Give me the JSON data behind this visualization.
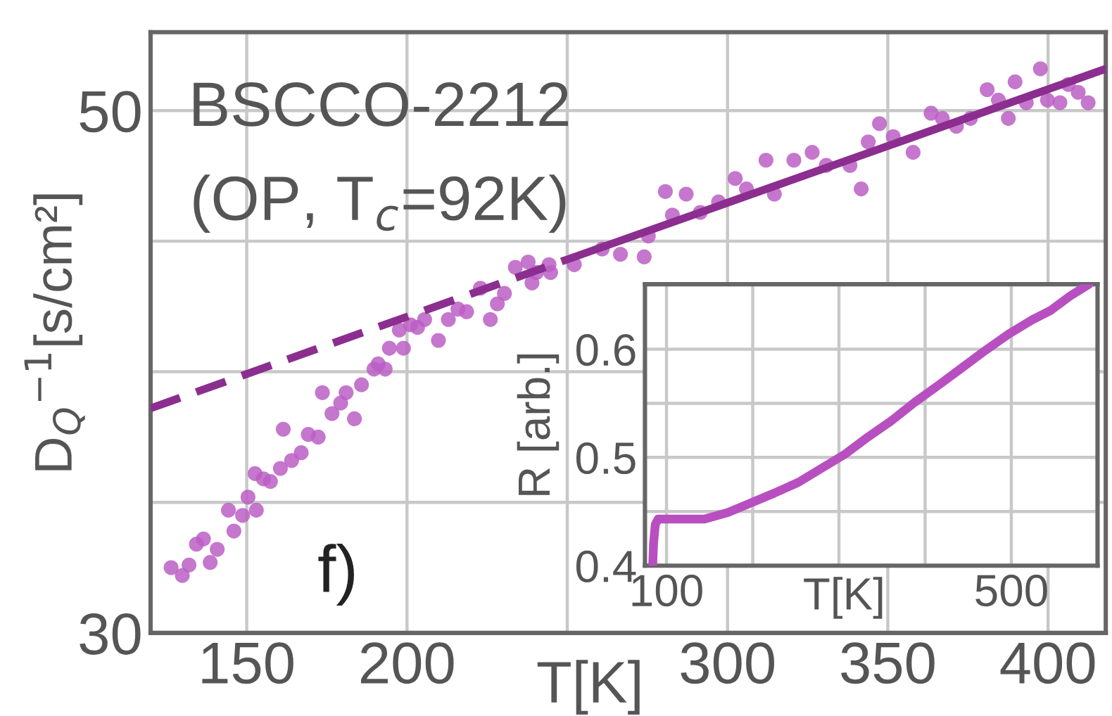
{
  "chart_data": [
    {
      "type": "scatter",
      "xlabel": "T[K]",
      "ylabel": "D$_{Q}$$^{−1}$[s/cm²]",
      "annotations": [
        "BSCCO-2212",
        "(OP, T$_{c}$=92K)",
        "f)"
      ],
      "xlim": [
        120,
        418
      ],
      "ylim": [
        30,
        53
      ],
      "xticks": [
        150,
        200,
        {
          "value": 250,
          "label": null
        },
        300,
        350,
        400
      ],
      "yticks": [
        30,
        {
          "value": 35,
          "label": null
        },
        {
          "value": 40,
          "label": null
        },
        {
          "value": 45,
          "label": null
        },
        50
      ],
      "grid": true,
      "series": [
        {
          "marker": "circle",
          "color": "#bb5ec4",
          "x": [
            126.4,
            129.9,
            132,
            134.3,
            136.5,
            138.6,
            140.8,
            144.3,
            146,
            148.7,
            150.4,
            152.6,
            153,
            155.2,
            157.4,
            160.5,
            161.4,
            164,
            167,
            169.2,
            172.3,
            173.6,
            176.6,
            179.3,
            181,
            183.6,
            185.8,
            189.7,
            191,
            193.2,
            194.5,
            197.6,
            198.9,
            201.1,
            203.3,
            205.5,
            209.8,
            212.9,
            215.9,
            218.6,
            222.9,
            226,
            228.2,
            230.4,
            233.8,
            237.8,
            240.4,
            244.3,
            239,
            244.8,
            252.2,
            260.9,
            266.6,
            274,
            275.3,
            280.6,
            282.8,
            287.1,
            291.5,
            297.2,
            302.4,
            305.9,
            312,
            314.6,
            320.7,
            326.4,
            330.8,
            338.2,
            341.7,
            343.9,
            347.4,
            351.7,
            357.9,
            363.5,
            367,
            371.4,
            375.8,
            381,
            384.5,
            387.6,
            389.7,
            393.2,
            397.6,
            399.8,
            403.7,
            406.3,
            409.4,
            412.5
          ],
          "values": [
            32.5,
            32.2,
            32.6,
            33.4,
            33.6,
            32.7,
            33.2,
            34.7,
            33.9,
            34.5,
            35.2,
            36.1,
            34.7,
            35.9,
            35.8,
            36.3,
            37.8,
            36.6,
            36.9,
            37.6,
            37.5,
            39.2,
            38.4,
            38.8,
            39.2,
            38.2,
            39.5,
            40.1,
            40.3,
            40.1,
            40.9,
            41.6,
            40.9,
            41.8,
            41.7,
            42.0,
            41.2,
            42.0,
            42.4,
            42.3,
            43.2,
            42.0,
            42.6,
            43.0,
            44.0,
            44.2,
            43.8,
            44.1,
            43.4,
            43.8,
            44.1,
            44.7,
            44.5,
            44.4,
            45.2,
            46.9,
            46.0,
            46.8,
            46.1,
            46.5,
            47.4,
            47.0,
            48.1,
            46.8,
            48.1,
            48.4,
            47.9,
            47.9,
            47.0,
            48.8,
            49.5,
            49.0,
            48.4,
            49.9,
            49.7,
            49.4,
            49.7,
            50.8,
            50.4,
            49.7,
            51.1,
            50.3,
            51.6,
            50.4,
            50.3,
            51.0,
            50.7,
            50.3
          ]
        },
        {
          "type": "line",
          "line_style": "dashed",
          "color": "#8b2e8f",
          "x": [
            120,
            250
          ],
          "values": [
            38.6,
            44.3
          ]
        },
        {
          "type": "line",
          "line_style": "solid",
          "color": "#8b2e8f",
          "x": [
            250,
            418
          ],
          "values": [
            44.3,
            51.6
          ]
        }
      ]
    },
    {
      "type": "line",
      "xlabel": "T[K]",
      "ylabel": "R [arb.]",
      "xlim": [
        75,
        600
      ],
      "ylim": [
        0.4,
        0.66
      ],
      "xticks": [
        100,
        {
          "value": 200,
          "label": null
        },
        {
          "value": 300,
          "label": null
        },
        {
          "value": 400,
          "label": null
        },
        500
      ],
      "yticks": [
        0.4,
        {
          "value": 0.45,
          "label": null
        },
        0.5,
        {
          "value": 0.55,
          "label": null
        },
        0.6
      ],
      "grid": true,
      "series": [
        {
          "line_style": "solid",
          "color": "#b84fc0",
          "x": [
            84,
            85,
            87,
            90.2,
            117,
            144,
            171,
            198,
            225,
            253,
            280,
            307,
            334,
            361,
            388,
            416,
            443,
            470,
            497,
            524,
            546,
            568,
            590
          ],
          "values": [
            0.401,
            0.421,
            0.438,
            0.443,
            0.443,
            0.443,
            0.449,
            0.458,
            0.467,
            0.477,
            0.49,
            0.503,
            0.519,
            0.534,
            0.551,
            0.567,
            0.583,
            0.599,
            0.614,
            0.627,
            0.636,
            0.649,
            0.66
          ]
        }
      ]
    }
  ]
}
